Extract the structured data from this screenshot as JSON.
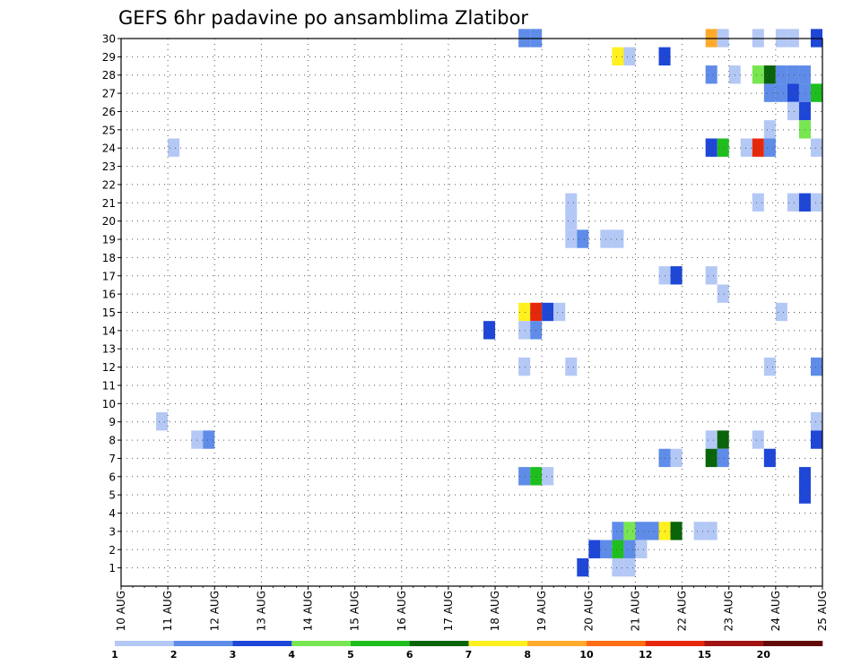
{
  "chart_data": {
    "type": "heatmap",
    "title": "GEFS 6hr padavine po ansamblima Zlatibor",
    "x_tick_labels": [
      "10 AUG",
      "11 AUG",
      "12 AUG",
      "13 AUG",
      "14 AUG",
      "15 AUG",
      "16 AUG",
      "17 AUG",
      "18 AUG",
      "19 AUG",
      "20 AUG",
      "21 AUG",
      "22 AUG",
      "23 AUG",
      "24 AUG",
      "25 AUG"
    ],
    "y_tick_labels": [
      "1",
      "2",
      "3",
      "4",
      "5",
      "6",
      "7",
      "8",
      "9",
      "10",
      "11",
      "12",
      "13",
      "14",
      "15",
      "16",
      "17",
      "18",
      "19",
      "20",
      "21",
      "22",
      "23",
      "24",
      "25",
      "26",
      "27",
      "28",
      "29",
      "30"
    ],
    "ylim": [
      0,
      30
    ],
    "time_steps": 60,
    "grid": true,
    "colorbar": {
      "position": "bottom",
      "tick_labels": [
        "1",
        "2",
        "3",
        "4",
        "5",
        "6",
        "7",
        "8",
        "10",
        "12",
        "15",
        "20"
      ],
      "colors": [
        "#b4c8f5",
        "#5f8ce8",
        "#1e46d7",
        "#78e650",
        "#1ebe1e",
        "#0a640a",
        "#fff01e",
        "#ffaa2d",
        "#ff6e14",
        "#e6280a",
        "#a01414",
        "#640a0a"
      ]
    },
    "cells": [
      [
        30,
        34,
        1
      ],
      [
        30,
        35,
        1
      ],
      [
        30,
        50,
        7
      ],
      [
        30,
        51,
        0
      ],
      [
        30,
        54,
        0
      ],
      [
        30,
        56,
        0
      ],
      [
        30,
        57,
        0
      ],
      [
        30,
        59,
        2
      ],
      [
        29,
        42,
        6
      ],
      [
        29,
        43,
        0
      ],
      [
        29,
        46,
        2
      ],
      [
        28,
        50,
        1
      ],
      [
        28,
        52,
        0
      ],
      [
        28,
        54,
        3
      ],
      [
        28,
        55,
        5
      ],
      [
        28,
        56,
        1
      ],
      [
        28,
        57,
        1
      ],
      [
        28,
        58,
        1
      ],
      [
        27,
        55,
        1
      ],
      [
        27,
        56,
        1
      ],
      [
        27,
        57,
        2
      ],
      [
        27,
        58,
        1
      ],
      [
        27,
        59,
        4
      ],
      [
        26,
        57,
        0
      ],
      [
        26,
        58,
        2
      ],
      [
        25,
        55,
        0
      ],
      [
        25,
        58,
        3
      ],
      [
        24,
        4,
        0
      ],
      [
        24,
        50,
        2
      ],
      [
        24,
        51,
        4
      ],
      [
        24,
        53,
        0
      ],
      [
        24,
        54,
        9
      ],
      [
        24,
        55,
        1
      ],
      [
        24,
        59,
        0
      ],
      [
        21,
        38,
        0
      ],
      [
        21,
        54,
        0
      ],
      [
        21,
        57,
        0
      ],
      [
        21,
        58,
        2
      ],
      [
        21,
        59,
        0
      ],
      [
        20,
        38,
        0
      ],
      [
        19,
        38,
        0
      ],
      [
        19,
        39,
        1
      ],
      [
        19,
        41,
        0
      ],
      [
        19,
        42,
        0
      ],
      [
        17,
        46,
        0
      ],
      [
        17,
        47,
        2
      ],
      [
        17,
        50,
        0
      ],
      [
        16,
        51,
        0
      ],
      [
        15,
        34,
        6
      ],
      [
        15,
        35,
        9
      ],
      [
        15,
        36,
        2
      ],
      [
        15,
        37,
        0
      ],
      [
        15,
        56,
        0
      ],
      [
        14,
        31,
        2
      ],
      [
        14,
        34,
        0
      ],
      [
        14,
        35,
        1
      ],
      [
        12,
        34,
        0
      ],
      [
        12,
        38,
        0
      ],
      [
        12,
        55,
        0
      ],
      [
        12,
        59,
        1
      ],
      [
        9,
        3,
        0
      ],
      [
        9,
        59,
        0
      ],
      [
        8,
        6,
        0
      ],
      [
        8,
        7,
        1
      ],
      [
        8,
        50,
        0
      ],
      [
        8,
        51,
        5
      ],
      [
        8,
        54,
        0
      ],
      [
        8,
        59,
        2
      ],
      [
        7,
        46,
        1
      ],
      [
        7,
        47,
        0
      ],
      [
        7,
        50,
        5
      ],
      [
        7,
        51,
        1
      ],
      [
        7,
        55,
        2
      ],
      [
        6,
        34,
        1
      ],
      [
        6,
        35,
        4
      ],
      [
        6,
        36,
        0
      ],
      [
        6,
        58,
        2
      ],
      [
        5,
        58,
        2
      ],
      [
        3,
        42,
        1
      ],
      [
        3,
        43,
        3
      ],
      [
        3,
        44,
        1
      ],
      [
        3,
        45,
        1
      ],
      [
        3,
        46,
        6
      ],
      [
        3,
        47,
        5
      ],
      [
        3,
        49,
        0
      ],
      [
        3,
        50,
        0
      ],
      [
        2,
        40,
        2
      ],
      [
        2,
        41,
        1
      ],
      [
        2,
        42,
        4
      ],
      [
        2,
        43,
        1
      ],
      [
        2,
        44,
        0
      ],
      [
        1,
        39,
        2
      ],
      [
        1,
        42,
        0
      ],
      [
        1,
        43,
        0
      ]
    ]
  }
}
